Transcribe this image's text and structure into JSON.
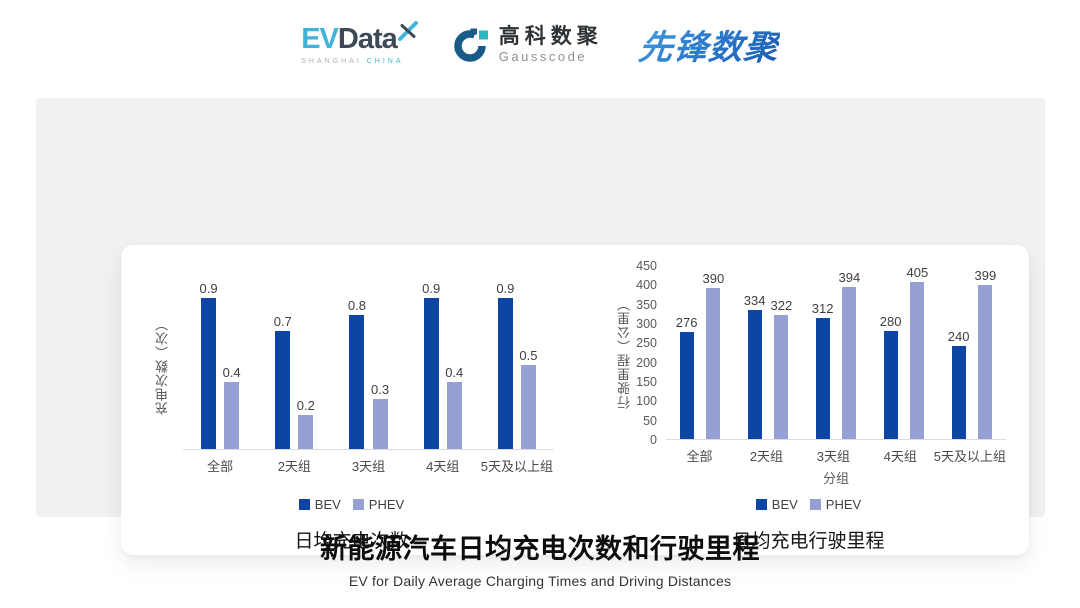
{
  "header": {
    "evdata": {
      "ev": "EV",
      "data": "Data",
      "sub_left": "SHANGHAI",
      "sub_right": "CHINA"
    },
    "gausscode": {
      "cn": "高科数聚",
      "en": "Gausscode"
    },
    "xianfeng": {
      "text": "先锋数聚"
    }
  },
  "colors": {
    "series_colors": [
      "#0e45a5",
      "#96a0d4"
    ],
    "axis_line": "#d8dadd",
    "panel_bg": "#f0f1f2",
    "evdata_blue": "#3fb3da",
    "evdata_dark": "#3d4956",
    "gausscode_blue": "#175c86",
    "gausscode_teal": "#2bb6c0",
    "xianfeng_blue": "#2d7ccd"
  },
  "chart_data": [
    {
      "type": "bar",
      "title": "日均充电次数",
      "ylabel": "充电次数（次）",
      "xlabel": "",
      "categories": [
        "全部",
        "2天组",
        "3天组",
        "4天组",
        "5天及以上组"
      ],
      "series": [
        {
          "name": "BEV",
          "values": [
            0.9,
            0.7,
            0.8,
            0.9,
            0.9
          ]
        },
        {
          "name": "PHEV",
          "values": [
            0.4,
            0.2,
            0.3,
            0.4,
            0.5
          ]
        }
      ],
      "ylim": [
        0,
        1.0
      ],
      "yticks": [],
      "grid": false,
      "legend_position": "bottom"
    },
    {
      "type": "bar",
      "title": "日均充电行驶里程",
      "ylabel": "行驶里程（公里）",
      "xlabel": "分组",
      "categories": [
        "全部",
        "2天组",
        "3天组",
        "4天组",
        "5天及以上组"
      ],
      "series": [
        {
          "name": "BEV",
          "values": [
            276,
            334,
            312,
            280,
            240
          ]
        },
        {
          "name": "PHEV",
          "values": [
            390,
            322,
            394,
            405,
            399
          ]
        }
      ],
      "ylim": [
        0,
        450
      ],
      "yticks": [
        0,
        50,
        100,
        150,
        200,
        250,
        300,
        350,
        400,
        450
      ],
      "grid": false,
      "legend_position": "bottom"
    }
  ],
  "footer": {
    "title": "新能源汽车日均充电次数和行驶里程",
    "subtitle": "EV for Daily Average Charging Times and Driving Distances"
  }
}
